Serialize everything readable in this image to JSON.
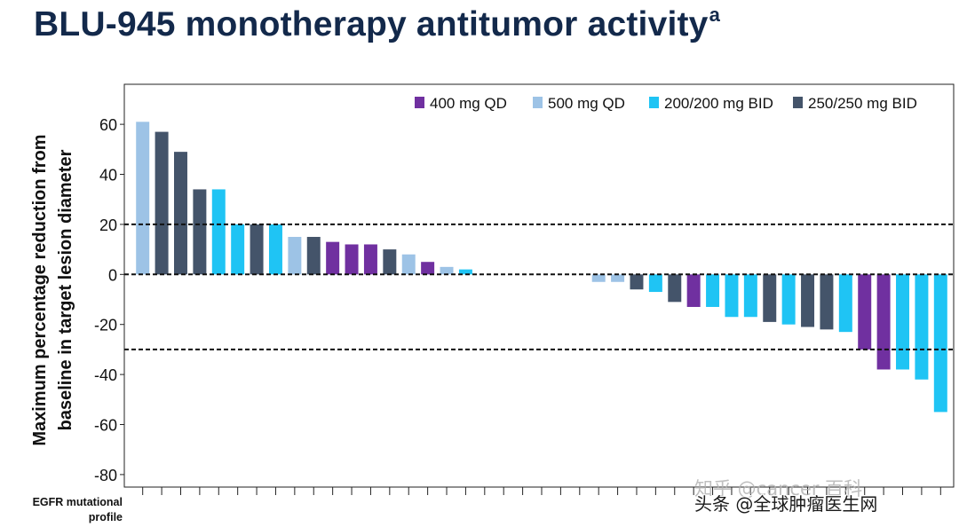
{
  "page": {
    "title": "BLU-945 monotherapy antitumor activity",
    "title_superscript": "a",
    "watermark_zhihu": "知乎 @cancer 百科",
    "watermark_toutiao": "头条 @全球肿瘤医生网"
  },
  "chart_data": {
    "type": "bar",
    "subtype": "waterfall",
    "title": "BLU-945 monotherapy antitumor activity",
    "ylabel": "Maximum percentage reduction from baseline in target lesion diameter",
    "xlabel": "EGFR mutational profile",
    "ylim": [
      -85,
      76
    ],
    "yticks": [
      60,
      40,
      20,
      0,
      -20,
      -40,
      -60,
      -80
    ],
    "reference_lines": [
      20,
      0,
      -30
    ],
    "legend_position": "top-right",
    "series": [
      {
        "name": "400 mg QD",
        "color": "#7030a0"
      },
      {
        "name": "500 mg QD",
        "color": "#9dc3e6"
      },
      {
        "name": "200/200 mg BID",
        "color": "#1fc4f4"
      },
      {
        "name": "250/250 mg BID",
        "color": "#44546a"
      }
    ],
    "patients": [
      {
        "value": 61,
        "series": "500 mg QD"
      },
      {
        "value": 57,
        "series": "250/250 mg BID"
      },
      {
        "value": 49,
        "series": "250/250 mg BID"
      },
      {
        "value": 34,
        "series": "250/250 mg BID"
      },
      {
        "value": 34,
        "series": "200/200 mg BID"
      },
      {
        "value": 20,
        "series": "200/200 mg BID"
      },
      {
        "value": 20,
        "series": "250/250 mg BID"
      },
      {
        "value": 20,
        "series": "200/200 mg BID"
      },
      {
        "value": 15,
        "series": "500 mg QD"
      },
      {
        "value": 15,
        "series": "250/250 mg BID"
      },
      {
        "value": 13,
        "series": "400 mg QD"
      },
      {
        "value": 12,
        "series": "400 mg QD"
      },
      {
        "value": 12,
        "series": "400 mg QD"
      },
      {
        "value": 10,
        "series": "250/250 mg BID"
      },
      {
        "value": 8,
        "series": "500 mg QD"
      },
      {
        "value": 5,
        "series": "400 mg QD"
      },
      {
        "value": 3,
        "series": "500 mg QD"
      },
      {
        "value": 2,
        "series": "200/200 mg BID"
      },
      {
        "value": 0,
        "series": "none"
      },
      {
        "value": 0,
        "series": "none"
      },
      {
        "value": 0,
        "series": "none"
      },
      {
        "value": 0,
        "series": "none"
      },
      {
        "value": 0,
        "series": "none"
      },
      {
        "value": 0,
        "series": "none"
      },
      {
        "value": -3,
        "series": "500 mg QD"
      },
      {
        "value": -3,
        "series": "500 mg QD"
      },
      {
        "value": -6,
        "series": "250/250 mg BID"
      },
      {
        "value": -7,
        "series": "200/200 mg BID"
      },
      {
        "value": -11,
        "series": "250/250 mg BID"
      },
      {
        "value": -13,
        "series": "400 mg QD"
      },
      {
        "value": -13,
        "series": "200/200 mg BID"
      },
      {
        "value": -17,
        "series": "200/200 mg BID"
      },
      {
        "value": -17,
        "series": "200/200 mg BID"
      },
      {
        "value": -19,
        "series": "250/250 mg BID"
      },
      {
        "value": -20,
        "series": "200/200 mg BID"
      },
      {
        "value": -21,
        "series": "250/250 mg BID"
      },
      {
        "value": -22,
        "series": "250/250 mg BID"
      },
      {
        "value": -23,
        "series": "200/200 mg BID"
      },
      {
        "value": -30,
        "series": "400 mg QD"
      },
      {
        "value": -38,
        "series": "400 mg QD"
      },
      {
        "value": -38,
        "series": "200/200 mg BID"
      },
      {
        "value": -42,
        "series": "200/200 mg BID"
      },
      {
        "value": -55,
        "series": "200/200 mg BID"
      }
    ]
  }
}
